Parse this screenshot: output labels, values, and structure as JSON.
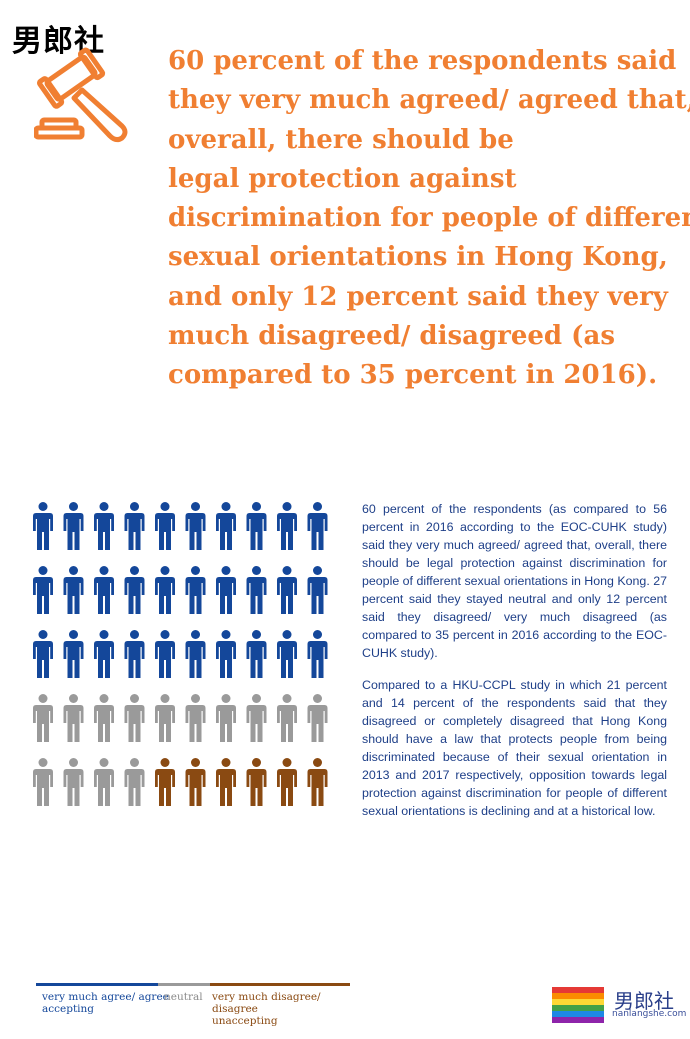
{
  "watermark": {
    "top_text": "男郎社",
    "brand_text": "男郎社",
    "domain_text": "nanlangshe.com"
  },
  "headline": {
    "lines": [
      "60 percent of the respondents said",
      "they very much agreed/ agreed that,",
      "overall, there should be",
      "legal protection against",
      "discrimination for people of different",
      "sexual orientations in Hong Kong,",
      "and only 12 percent said they very",
      "much disagreed/ disagreed (as",
      "compared to 35 percent in 2016)."
    ]
  },
  "body": {
    "paragraph1": "60 percent of the respondents (as compared to 56 percent in 2016 according to the EOC-CUHK study) said they very much agreed/ agreed that, overall, there should be legal protection against discrimination for people of different sexual orientations in Hong Kong. 27 percent said they stayed neutral and only 12 percent said they disagreed/ very much disagreed (as compared to 35 percent in 2016 according to the EOC-CUHK study).",
    "paragraph2": "Compared to a HKU-CCPL study in which 21 percent and 14 percent of the respondents said that they disagreed or completely disagreed that Hong Kong should have a law that protects people from being discriminated because of their sexual orientation in 2013 and 2017 respectively, opposition towards legal protection against discrimination for people of different sexual orientations is declining and at a historical low."
  },
  "legend": {
    "agree": [
      "very much agree/ agree",
      "accepting"
    ],
    "neutral": [
      "neutral"
    ],
    "disagree": [
      "very much disagree/ disagree",
      "unaccepting"
    ]
  },
  "colors": {
    "headline": "#f07f32",
    "agree": "#14479a",
    "neutral": "#9a9a9a",
    "disagree": "#8a4a12",
    "body": "#1e3f88"
  },
  "chart_data": {
    "type": "pictogram",
    "rows": 5,
    "columns": 10,
    "series": [
      {
        "name": "very much agree/ agree (accepting)",
        "count": 30,
        "color": "#14479a"
      },
      {
        "name": "neutral",
        "count": 14,
        "color": "#9a9a9a"
      },
      {
        "name": "very much disagree/ disagree (unaccepting)",
        "count": 6,
        "color": "#8a4a12"
      }
    ]
  }
}
